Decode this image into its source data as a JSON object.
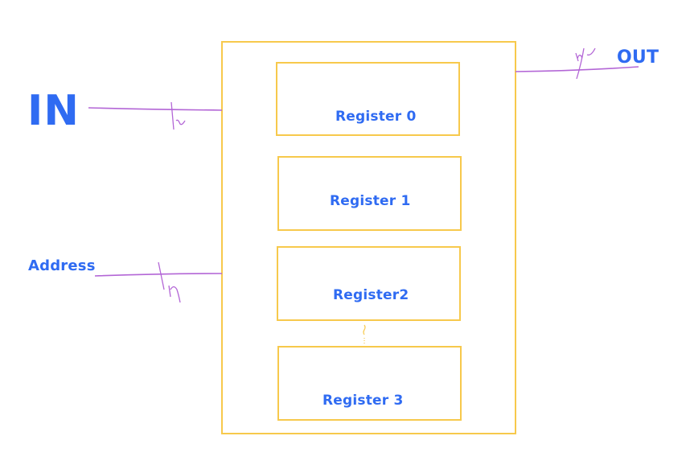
{
  "diagram": {
    "signals": {
      "in_label": "IN",
      "out_label": "OUT",
      "address_label": "Address"
    },
    "registers": [
      {
        "label": "Register 0"
      },
      {
        "label": "Register 1"
      },
      {
        "label": "Register2"
      },
      {
        "label": "Register 3"
      }
    ],
    "colors": {
      "box_stroke": "#f7c94c",
      "wire_stroke": "#b366d6",
      "text": "#2f6bf2"
    }
  }
}
